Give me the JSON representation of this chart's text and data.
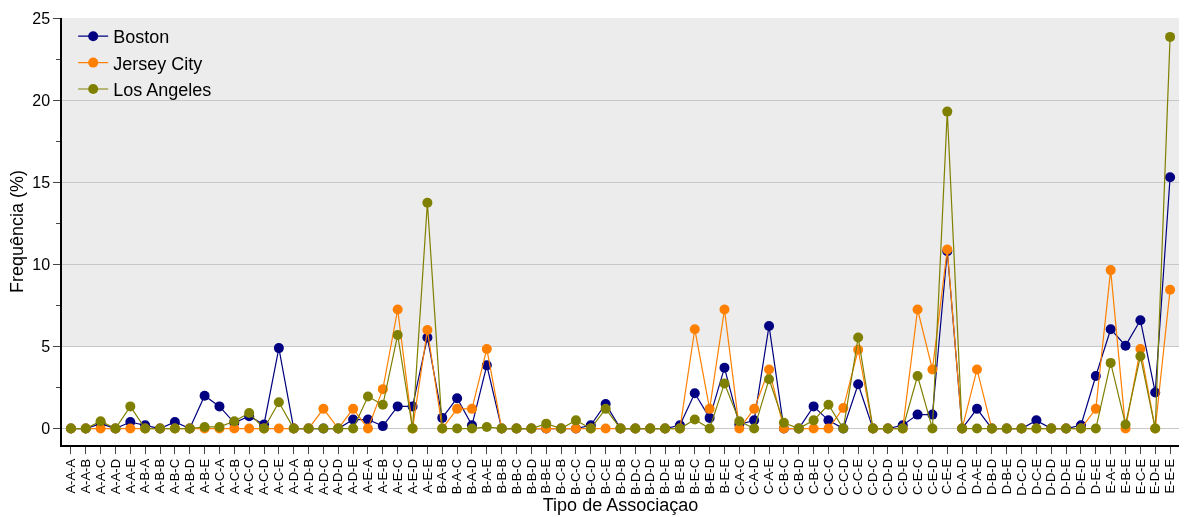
{
  "chart_data": {
    "type": "line",
    "xlabel": "Tipo de Associaçao",
    "ylabel": "Frequência (%)",
    "categories": [
      "A-A-A",
      "A-A-B",
      "A-A-C",
      "A-A-D",
      "A-A-E",
      "A-B-A",
      "A-B-B",
      "A-B-C",
      "A-B-D",
      "A-B-E",
      "A-C-A",
      "A-C-B",
      "A-C-C",
      "A-C-D",
      "A-C-E",
      "A-D-A",
      "A-D-B",
      "A-D-C",
      "A-D-D",
      "A-D-E",
      "A-E-A",
      "A-E-B",
      "A-E-C",
      "A-E-D",
      "A-E-E",
      "B-A-B",
      "B-A-C",
      "B-A-D",
      "B-A-E",
      "B-B-B",
      "B-B-C",
      "B-B-D",
      "B-B-E",
      "B-C-B",
      "B-C-C",
      "B-C-D",
      "B-C-E",
      "B-D-B",
      "B-D-C",
      "B-D-D",
      "B-D-E",
      "B-E-B",
      "B-E-C",
      "B-E-D",
      "B-E-E",
      "C-A-C",
      "C-A-D",
      "C-A-E",
      "C-B-C",
      "C-B-D",
      "C-B-E",
      "C-C-C",
      "C-C-D",
      "C-C-E",
      "C-D-C",
      "C-D-D",
      "C-D-E",
      "C-E-C",
      "C-E-D",
      "C-E-E",
      "D-A-D",
      "D-A-E",
      "D-B-D",
      "D-B-E",
      "D-C-D",
      "D-C-E",
      "D-D-D",
      "D-D-E",
      "D-E-D",
      "D-E-E",
      "E-A-E",
      "E-B-E",
      "E-C-E",
      "E-D-E",
      "E-E-E"
    ],
    "series": [
      {
        "name": "Boston",
        "color": "#000080",
        "values": [
          0,
          0,
          0.3,
          0,
          0.4,
          0.2,
          0,
          0.4,
          0,
          2.0,
          1.35,
          0.35,
          0.75,
          0.25,
          4.9,
          0,
          0,
          0,
          0,
          0.55,
          0.55,
          0.15,
          1.35,
          1.35,
          5.55,
          0.65,
          1.85,
          0.2,
          3.85,
          0,
          0,
          0,
          0,
          0,
          0,
          0.2,
          1.5,
          0,
          0,
          0,
          0,
          0.2,
          2.15,
          0.65,
          3.7,
          0.25,
          0.5,
          6.25,
          0,
          0,
          1.35,
          0.5,
          0,
          2.7,
          0,
          0,
          0.2,
          0.85,
          0.85,
          10.8,
          0,
          1.2,
          0,
          0,
          0,
          0.5,
          0,
          0,
          0.2,
          3.2,
          6.05,
          5.05,
          6.6,
          2.2,
          15.3
        ]
      },
      {
        "name": "Jersey City",
        "color": "#ff8000",
        "values": [
          0,
          0,
          0,
          0,
          0,
          0,
          0,
          0,
          0,
          0,
          0,
          0,
          0,
          0,
          0,
          0,
          0,
          1.2,
          0,
          1.2,
          0,
          2.4,
          7.25,
          0,
          6.0,
          0,
          1.2,
          1.2,
          4.85,
          0,
          0,
          0,
          0,
          0,
          0,
          0,
          0,
          0,
          0,
          0,
          0,
          0,
          6.05,
          1.2,
          7.25,
          0,
          1.2,
          3.6,
          0,
          0,
          0,
          0,
          1.25,
          4.8,
          0,
          0,
          0,
          7.25,
          3.6,
          10.9,
          0,
          3.6,
          0,
          0,
          0,
          0,
          0,
          0,
          0,
          1.2,
          9.65,
          0,
          4.85,
          0,
          8.45
        ]
      },
      {
        "name": "Los Angeles",
        "color": "#808000",
        "values": [
          0,
          0,
          0.45,
          0,
          1.35,
          0,
          0,
          0,
          0,
          0.1,
          0.1,
          0.45,
          0.95,
          0,
          1.6,
          0,
          0,
          0,
          0,
          0,
          1.95,
          1.45,
          5.7,
          0,
          13.75,
          0,
          0,
          0,
          0.1,
          0,
          0,
          0,
          0.3,
          0,
          0.5,
          0,
          1.2,
          0,
          0,
          0,
          0,
          0,
          0.55,
          0,
          2.75,
          0.45,
          0,
          3.0,
          0.35,
          0,
          0.5,
          1.45,
          0,
          5.55,
          0,
          0,
          0,
          3.2,
          0,
          19.3,
          0,
          0,
          0,
          0,
          0,
          0,
          0,
          0,
          0,
          0,
          4.0,
          0.25,
          4.4,
          0,
          23.85
        ]
      }
    ],
    "ylim": [
      -1,
      25
    ],
    "yticks": [
      0,
      5,
      10,
      15,
      20,
      25
    ],
    "grid": "y",
    "legend": "top left",
    "marker": "circle",
    "line_style": "solid",
    "bands": [
      {
        "axis": "y",
        "from": 5,
        "to": 25,
        "color": "#ececec"
      }
    ]
  }
}
